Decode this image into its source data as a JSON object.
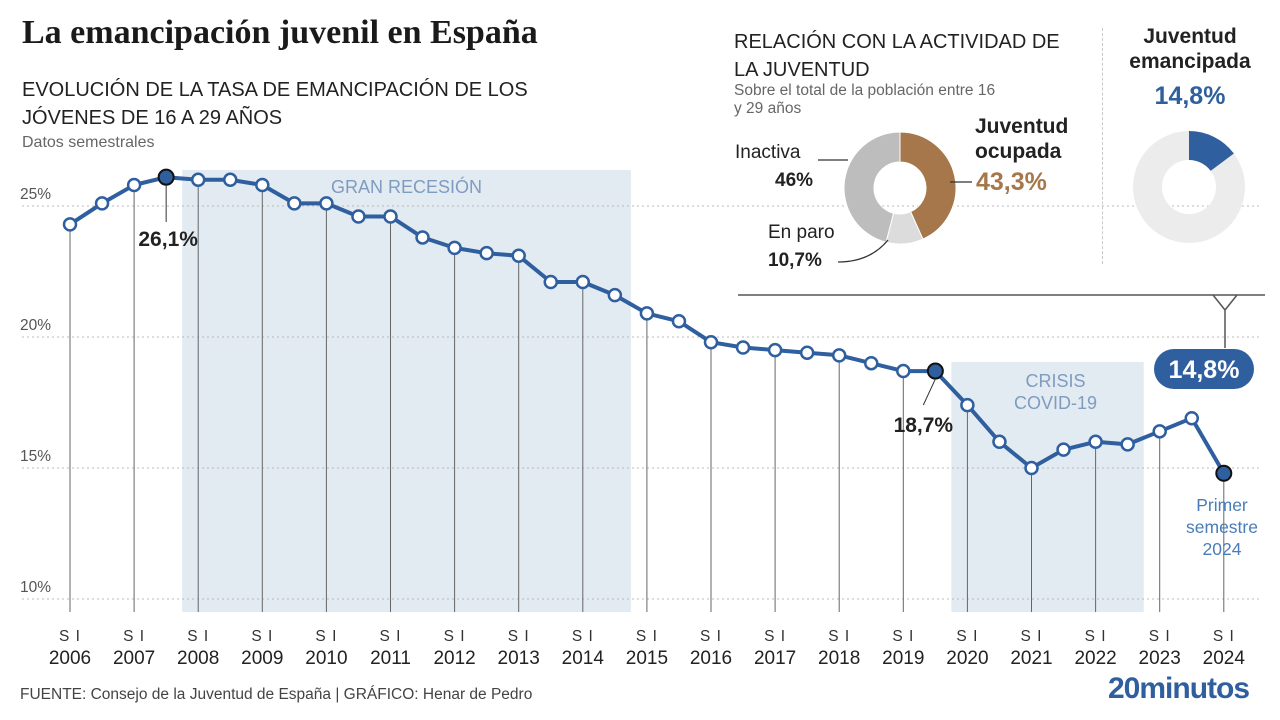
{
  "header": {
    "title": "La emancipación juvenil en España",
    "chart_title": "EVOLUCIÓN DE LA TASA DE EMANCIPACIÓN DE LOS JÓVENES DE 16 A 29 AÑOS",
    "chart_subtitle": "Datos semestrales"
  },
  "colors": {
    "line": "#2f5f9e",
    "shade": "#dde6f0",
    "ocupada": "#a6774a",
    "inactiva": "#bdbdbd",
    "paro": "#dcdcdc",
    "donut_bg": "#ececec"
  },
  "chart_data": {
    "type": "line",
    "x_unit": "semester",
    "categories": [
      "2006 S1",
      "2006 S2",
      "2007 S1",
      "2007 S2",
      "2008 S1",
      "2008 S2",
      "2009 S1",
      "2009 S2",
      "2010 S1",
      "2010 S2",
      "2011 S1",
      "2011 S2",
      "2012 S1",
      "2012 S2",
      "2013 S1",
      "2013 S2",
      "2014 S1",
      "2014 S2",
      "2015 S1",
      "2015 S2",
      "2016 S1",
      "2016 S2",
      "2017 S1",
      "2017 S2",
      "2018 S1",
      "2018 S2",
      "2019 S1",
      "2019 S2",
      "2020 S1",
      "2020 S2",
      "2021 S1",
      "2021 S2",
      "2022 S1",
      "2022 S2",
      "2023 S1",
      "2023 S2",
      "2024 S1"
    ],
    "values": [
      24.3,
      25.1,
      25.8,
      26.1,
      26.0,
      26.0,
      25.8,
      25.1,
      25.1,
      24.6,
      24.6,
      23.8,
      23.4,
      23.2,
      23.1,
      22.1,
      22.1,
      21.6,
      20.9,
      20.6,
      19.8,
      19.6,
      19.5,
      19.4,
      19.3,
      19.0,
      18.7,
      18.7,
      17.4,
      16.0,
      15.0,
      15.7,
      16.0,
      15.9,
      16.4,
      16.9,
      14.8
    ],
    "ylim": [
      9,
      27
    ],
    "y_ticks": [
      "25%",
      "20%",
      "15%",
      "10%"
    ],
    "y_tick_values": [
      25,
      20,
      15,
      10
    ],
    "year_labels": [
      "2006",
      "2007",
      "2008",
      "2009",
      "2010",
      "2011",
      "2012",
      "2013",
      "2014",
      "2015",
      "2016",
      "2017",
      "2018",
      "2019",
      "2020",
      "2021",
      "2022",
      "2023",
      "2024"
    ],
    "semester_labels": [
      "S",
      "I"
    ],
    "shaded_periods": [
      {
        "label": "GRAN RECESIÓN",
        "from_index": 3.5,
        "to_index": 17.5
      },
      {
        "label": "CRISIS COVID-19",
        "from_index": 27.5,
        "to_index": 33.5
      }
    ],
    "annotations": [
      {
        "index": 3,
        "text": "26,1%"
      },
      {
        "index": 27,
        "text": "18,7%"
      },
      {
        "index": 36,
        "text": "14,8%",
        "note": "Primer semestre 2024"
      }
    ]
  },
  "activity": {
    "title": "RELACIÓN CON LA ACTIVIDAD DE LA JUVENTUD",
    "subtitle": "Sobre el total de la población entre 16 y 29 años",
    "slices": [
      {
        "name": "Juventud ocupada",
        "value": 43.3,
        "label": "43,3%"
      },
      {
        "name": "En paro",
        "value": 10.7,
        "label": "10,7%"
      },
      {
        "name": "Inactiva",
        "value": 46,
        "label": "46%"
      }
    ],
    "labels": {
      "inactiva": "Inactiva",
      "inactiva_value": "46%",
      "paro": "En paro",
      "paro_value": "10,7%",
      "ocupada": "Juventud ocupada",
      "ocupada_value": "43,3%"
    }
  },
  "emancipated": {
    "title": "Juventud emancipada",
    "value": 14.8,
    "label": "14,8%"
  },
  "footer": {
    "source": "FUENTE: Consejo de la Juventud de España  |  GRÁFICO: Henar de Pedro",
    "brand": "20minutos"
  }
}
